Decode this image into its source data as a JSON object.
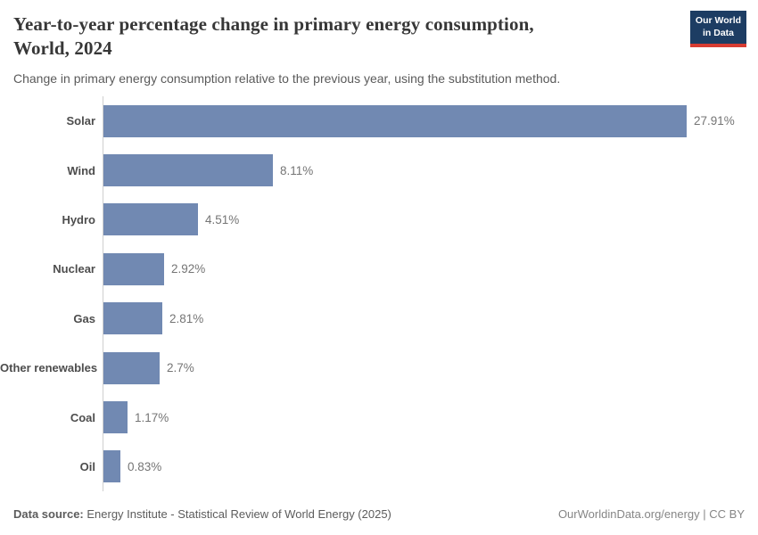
{
  "header": {
    "title_line1": "Year-to-year percentage change in primary energy consumption,",
    "title_line2": "World, 2024",
    "subtitle": "Change in primary energy consumption relative to the previous year, using the substitution method."
  },
  "logo": {
    "line1": "Our World",
    "line2": "in Data",
    "bg_color": "#1d3d63",
    "accent_color": "#d73c32"
  },
  "chart_data": {
    "type": "bar",
    "orientation": "horizontal",
    "title": "Year-to-year percentage change in primary energy consumption, World, 2024",
    "subtitle": "Change in primary energy consumption relative to the previous year, using the substitution method.",
    "categories": [
      "Solar",
      "Wind",
      "Hydro",
      "Nuclear",
      "Gas",
      "Other renewables",
      "Coal",
      "Oil"
    ],
    "values": [
      27.91,
      8.11,
      4.51,
      2.92,
      2.81,
      2.7,
      1.17,
      0.83
    ],
    "value_labels": [
      "27.91%",
      "8.11%",
      "4.51%",
      "2.92%",
      "2.81%",
      "2.7%",
      "1.17%",
      "0.83%"
    ],
    "unit": "%",
    "xlim": [
      0,
      27.91
    ],
    "grid": false,
    "legend": "none",
    "bar_color": "#7189b2",
    "axis_line_color": "#cfcfcf"
  },
  "footer": {
    "data_source_label": "Data source:",
    "data_source_text": " Energy Institute - Statistical Review of World Energy (2025)",
    "right_text": "OurWorldinData.org/energy | CC BY"
  }
}
